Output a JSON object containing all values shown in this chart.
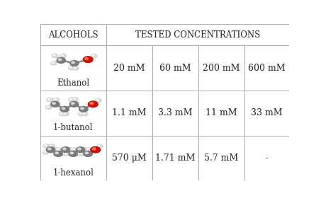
{
  "header_col1": "ALCOHOLS",
  "header_col2": "TESTED CONCENTRATIONS",
  "rows": [
    {
      "alcohol": "Ethanol",
      "concentrations": [
        "20 mM",
        "60 mM",
        "200 mM",
        "600 mM"
      ]
    },
    {
      "alcohol": "1-butanol",
      "concentrations": [
        "1.1 mM",
        "3.3 mM",
        "11 mM",
        "33 mM"
      ]
    },
    {
      "alcohol": "1-hexanol",
      "concentrations": [
        "570 μM",
        "1.71 mM",
        "5.7 mM",
        "-"
      ]
    }
  ],
  "bg_color": "#ffffff",
  "line_color": "#aaaaaa",
  "text_color": "#222222",
  "header_fontsize": 8.5,
  "cell_fontsize": 9,
  "label_fontsize": 8.5,
  "C_color": "#7a7a7a",
  "H_color": "#d8d8d8",
  "O_color": "#cc1100",
  "C_r": 0.018,
  "H_r": 0.012,
  "O_r": 0.02
}
